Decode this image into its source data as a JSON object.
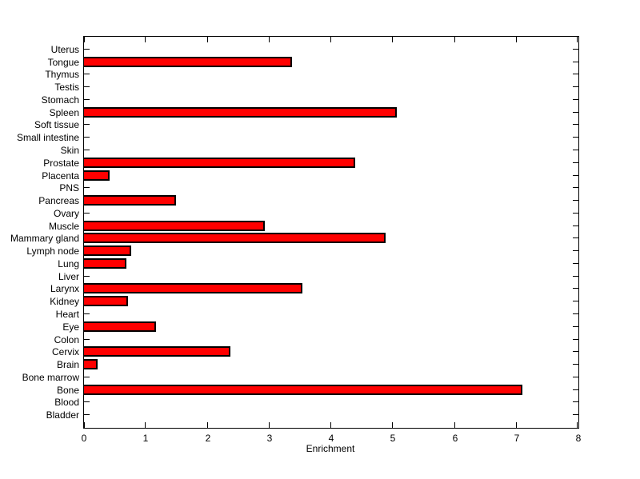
{
  "chart_data": {
    "type": "bar",
    "orientation": "horizontal",
    "title": "",
    "xlabel": "Enrichment",
    "xlim": [
      0,
      8
    ],
    "xticks": [
      0,
      1,
      2,
      3,
      4,
      5,
      6,
      7,
      8
    ],
    "grid": false,
    "legend": false,
    "bar_color": "#FF0000",
    "bar_edge_color": "#000000",
    "axis_color": "#000000",
    "background_color": "#FFFFFF",
    "categories": [
      "Uterus",
      "Tongue",
      "Thymus",
      "Testis",
      "Stomach",
      "Spleen",
      "Soft tissue",
      "Small intestine",
      "Skin",
      "Prostate",
      "Placenta",
      "PNS",
      "Pancreas",
      "Ovary",
      "Muscle",
      "Mammary gland",
      "Lymph node",
      "Lung",
      "Liver",
      "Larynx",
      "Kidney",
      "Heart",
      "Eye",
      "Colon",
      "Cervix",
      "Brain",
      "Bone marrow",
      "Bone",
      "Blood",
      "Bladder"
    ],
    "values": [
      0,
      3.37,
      0,
      0,
      0,
      5.06,
      0,
      0,
      0,
      4.39,
      0.41,
      0,
      1.49,
      0,
      2.93,
      4.88,
      0.76,
      0.68,
      0,
      3.54,
      0.71,
      0,
      1.16,
      0,
      2.37,
      0.22,
      0,
      7.1,
      0,
      0
    ]
  }
}
